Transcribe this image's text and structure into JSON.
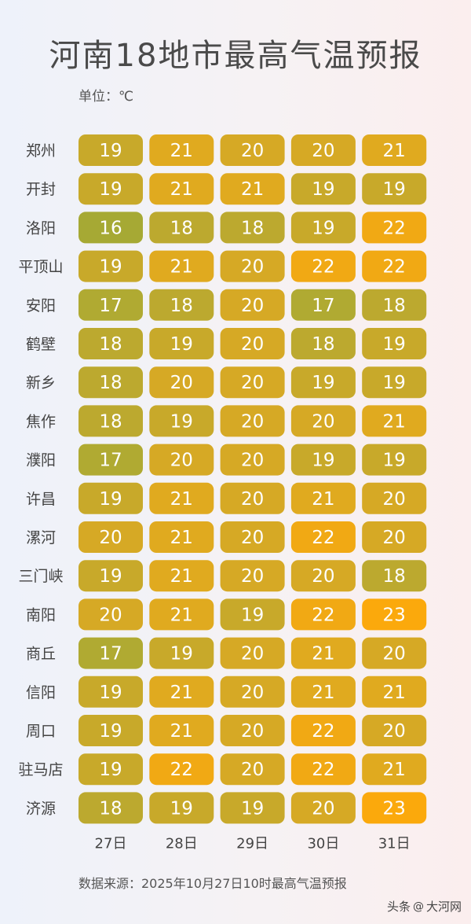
{
  "title": "河南18地市最高气温预报",
  "unit_label": "单位：℃",
  "footer": "数据来源：2025年10月27日10时最高气温预报",
  "watermark": {
    "source": "头条",
    "account": "大河网"
  },
  "chart_data": {
    "type": "heatmap",
    "title": "河南18地市最高气温预报",
    "unit": "℃",
    "columns": [
      "27日",
      "28日",
      "29日",
      "30日",
      "31日"
    ],
    "rows": [
      "郑州",
      "开封",
      "洛阳",
      "平顶山",
      "安阳",
      "鹤壁",
      "新乡",
      "焦作",
      "濮阳",
      "许昌",
      "漯河",
      "三门峡",
      "南阳",
      "商丘",
      "信阳",
      "周口",
      "驻马店",
      "济源"
    ],
    "values": [
      [
        19,
        21,
        20,
        20,
        21
      ],
      [
        19,
        21,
        21,
        19,
        19
      ],
      [
        16,
        18,
        18,
        19,
        22
      ],
      [
        19,
        21,
        20,
        22,
        22
      ],
      [
        17,
        18,
        20,
        17,
        18
      ],
      [
        18,
        19,
        20,
        18,
        19
      ],
      [
        18,
        20,
        20,
        19,
        19
      ],
      [
        18,
        19,
        20,
        20,
        21
      ],
      [
        17,
        20,
        20,
        19,
        19
      ],
      [
        19,
        21,
        20,
        21,
        20
      ],
      [
        20,
        21,
        20,
        22,
        20
      ],
      [
        19,
        21,
        20,
        20,
        18
      ],
      [
        20,
        21,
        19,
        22,
        23
      ],
      [
        17,
        19,
        20,
        21,
        20
      ],
      [
        19,
        21,
        20,
        21,
        21
      ],
      [
        19,
        21,
        20,
        22,
        20
      ],
      [
        19,
        22,
        20,
        22,
        21
      ],
      [
        18,
        19,
        19,
        20,
        23
      ]
    ],
    "color_scale": {
      "16": "#a6a934",
      "17": "#b0aa32",
      "18": "#bca92f",
      "19": "#c8a92a",
      "20": "#d6a925",
      "21": "#e0aa1f",
      "22": "#f1a914",
      "23": "#fba90c"
    },
    "text_color": "#ffffff",
    "label_color": "#444444"
  }
}
